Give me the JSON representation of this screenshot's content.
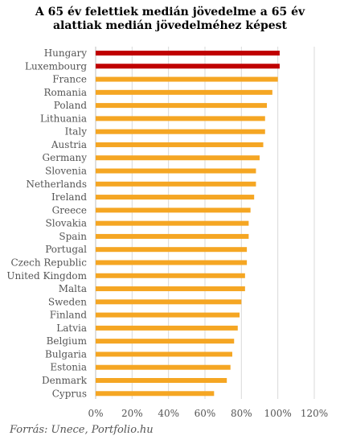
{
  "title_line1": "A 65 év felettiek medián jövedelme a 65 év",
  "title_line2": "alattiak medián jövedelméhez képest",
  "source": "Forrás: Unece, Portfolio.hu",
  "colors": {
    "highlight": "#c00000",
    "default": "#f5a623",
    "grid": "#d9d9d9"
  },
  "chart_data": {
    "type": "bar",
    "orientation": "horizontal",
    "title": "A 65 év felettiek medián jövedelme a 65 év alattiak medián jövedelméhez képest",
    "categories": [
      "Hungary",
      "Luxembourg",
      "France",
      "Romania",
      "Poland",
      "Lithuania",
      "Italy",
      "Austria",
      "Germany",
      "Slovenia",
      "Netherlands",
      "Ireland",
      "Greece",
      "Slovakia",
      "Spain",
      "Portugal",
      "Czech Republic",
      "United Kingdom",
      "Malta",
      "Sweden",
      "Finland",
      "Latvia",
      "Belgium",
      "Bulgaria",
      "Estonia",
      "Denmark",
      "Cyprus"
    ],
    "values": [
      101,
      101,
      100,
      97,
      94,
      93,
      93,
      92,
      90,
      88,
      88,
      87,
      85,
      84,
      84,
      83,
      83,
      82,
      82,
      80,
      79,
      78,
      76,
      75,
      74,
      72,
      65
    ],
    "highlight": [
      "Hungary",
      "Luxembourg"
    ],
    "xlim": [
      0,
      120
    ],
    "xticks": [
      "0%",
      "20%",
      "40%",
      "60%",
      "80%",
      "100%",
      "120%"
    ],
    "xtick_values": [
      0,
      20,
      40,
      60,
      80,
      100,
      120
    ],
    "grid": true
  }
}
